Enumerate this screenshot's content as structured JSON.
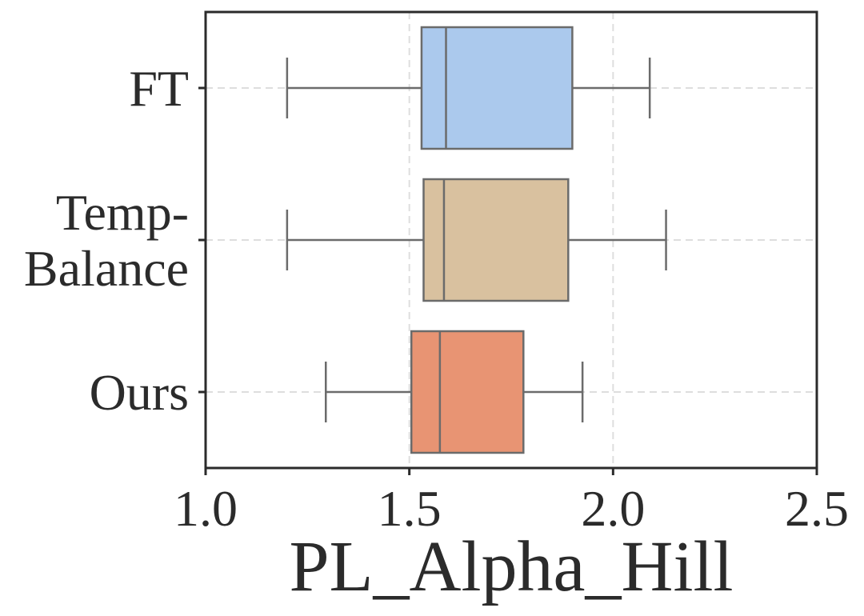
{
  "chart_data": {
    "type": "boxplot",
    "orientation": "horizontal",
    "title": "",
    "xlabel": "PL_Alpha_Hill",
    "ylabel": "",
    "xlim": [
      1.0,
      2.5
    ],
    "xticks": [
      1.0,
      1.5,
      2.0,
      2.5
    ],
    "xtick_labels": [
      "1.0",
      "1.5",
      "2.0",
      "2.5"
    ],
    "grid": true,
    "categories": [
      {
        "label_lines": [
          "FT"
        ],
        "color": "#abc9ed",
        "whisker_low": 1.2,
        "q1": 1.53,
        "median": 1.59,
        "q3": 1.9,
        "whisker_high": 2.09
      },
      {
        "label_lines": [
          "Temp-",
          "Balance"
        ],
        "color": "#d9c19f",
        "whisker_low": 1.2,
        "q1": 1.535,
        "median": 1.585,
        "q3": 1.89,
        "whisker_high": 2.13
      },
      {
        "label_lines": [
          "Ours"
        ],
        "color": "#e89473",
        "whisker_low": 1.295,
        "q1": 1.505,
        "median": 1.575,
        "q3": 1.78,
        "whisker_high": 1.925
      }
    ]
  }
}
